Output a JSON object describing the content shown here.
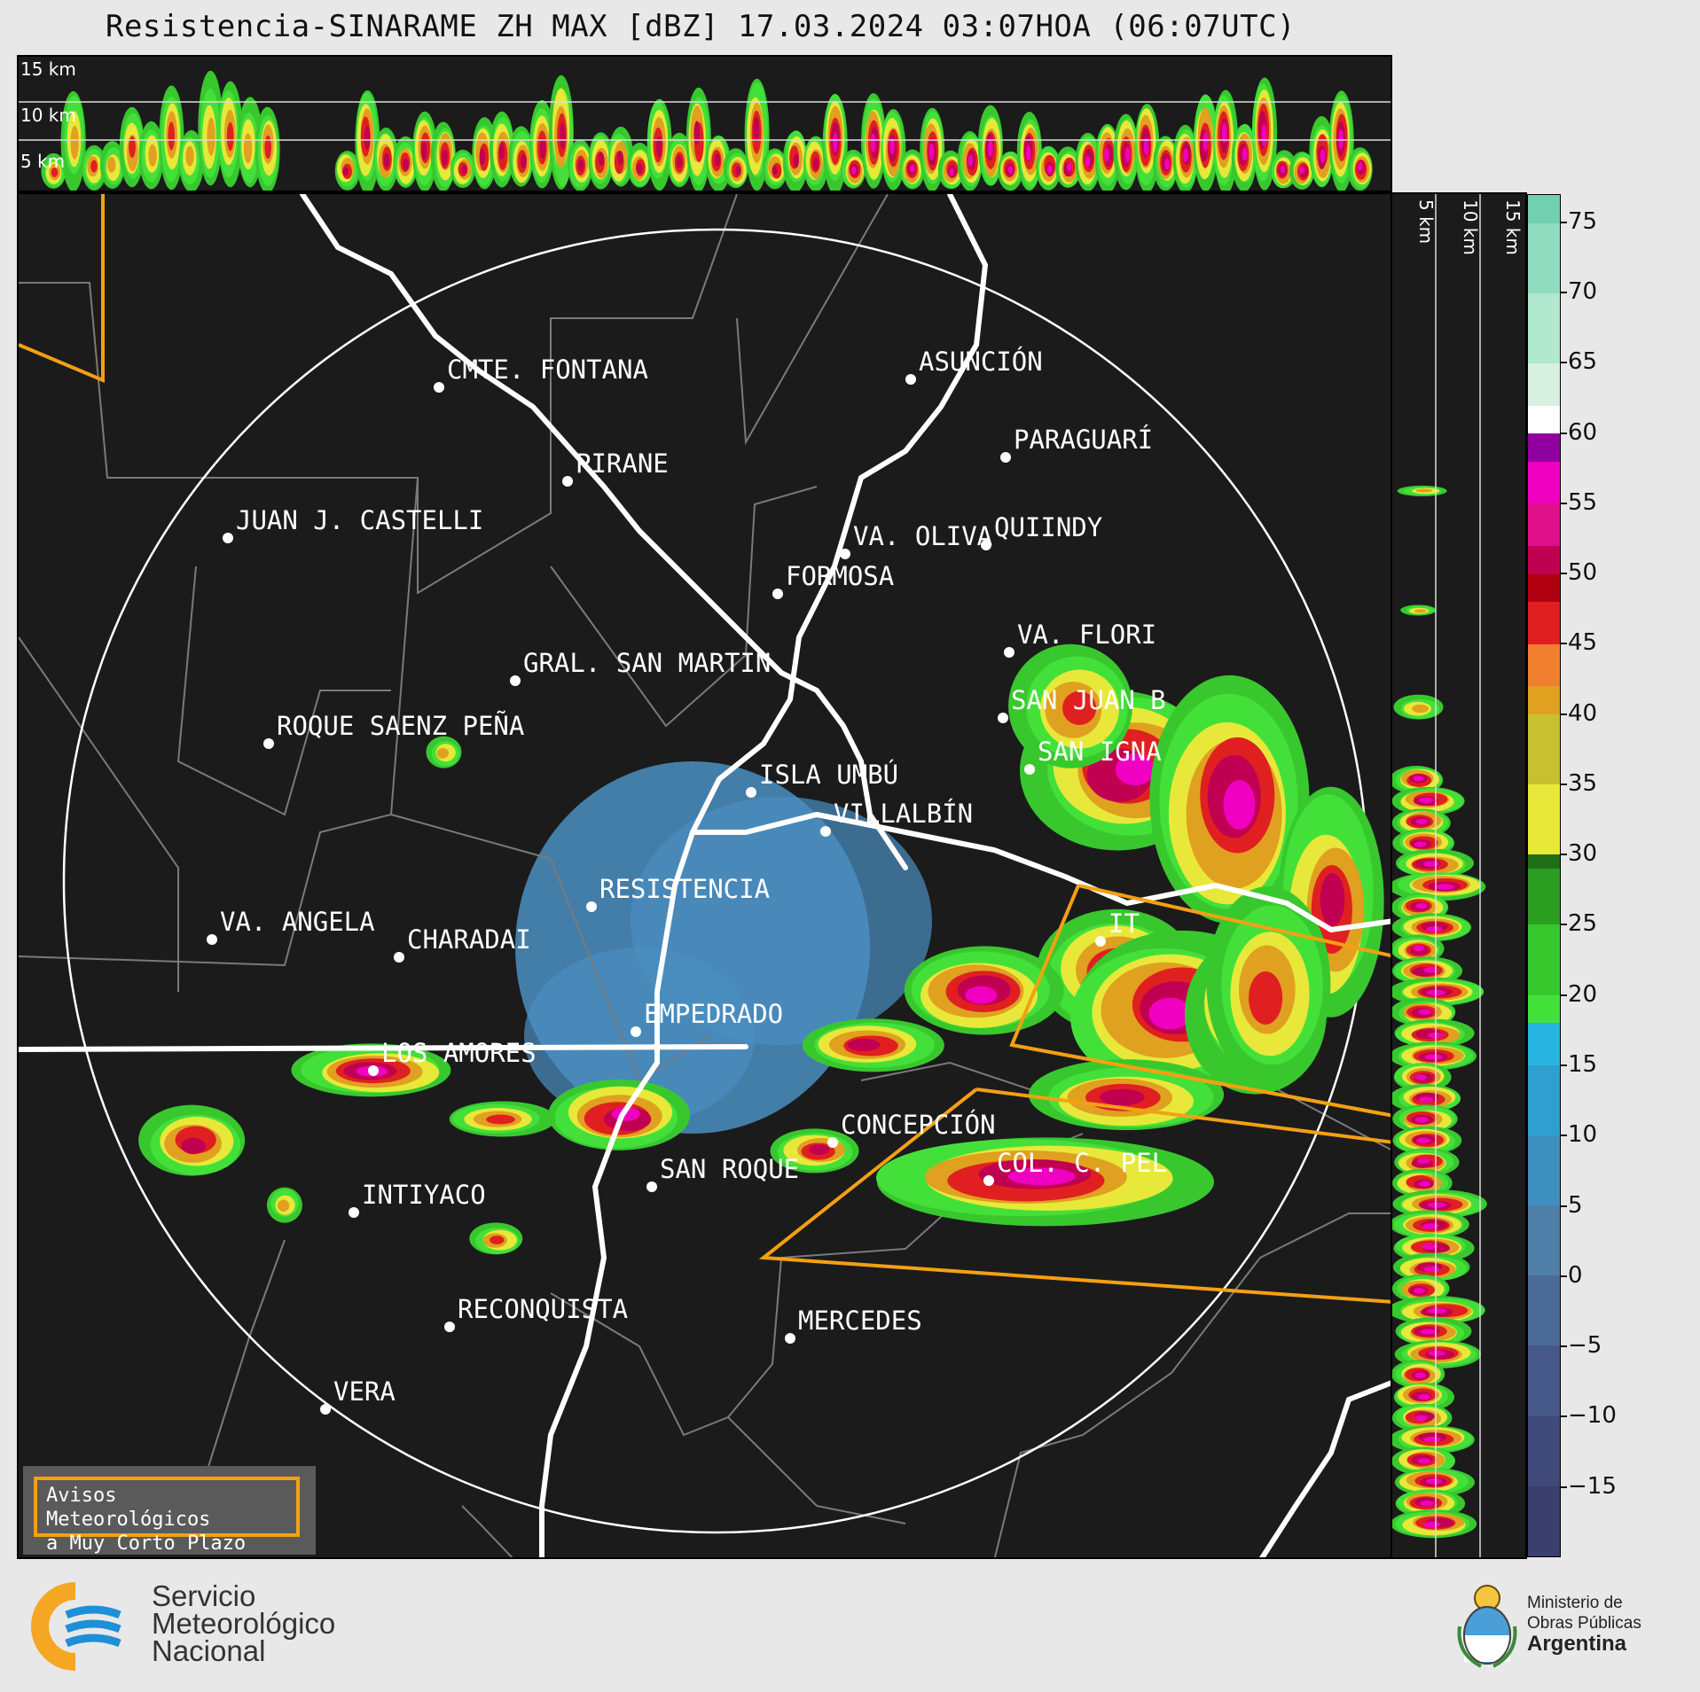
{
  "title": "Resistencia-SINARAME ZH MAX [dBZ] 17.03.2024 03:07HOA (06:07UTC)",
  "top_strip": {
    "height_labels": [
      "15 km",
      "10 km",
      "5 km"
    ]
  },
  "side_strip": {
    "height_labels": [
      "5 km",
      "10 km",
      "15 km"
    ]
  },
  "colorbar": {
    "unit": "dBZ",
    "ticks": [
      "75",
      "70",
      "65",
      "60",
      "55",
      "50",
      "45",
      "40",
      "35",
      "30",
      "25",
      "20",
      "15",
      "10",
      "5",
      "0",
      "−5",
      "−10",
      "−15"
    ],
    "tick_values": [
      75,
      70,
      65,
      60,
      55,
      50,
      45,
      40,
      35,
      30,
      25,
      20,
      15,
      10,
      5,
      0,
      -5,
      -10,
      -15
    ],
    "range": [
      -20,
      77
    ],
    "colors": {
      "-20": "#3a3f6b",
      "-15": "#3f4a7a",
      "-10": "#455887",
      "-5": "#4b6a97",
      "0": "#4f7fa8",
      "5": "#3d8fbf",
      "10": "#2f9fd0",
      "15": "#28b4e0",
      "18": "#44e03a",
      "20": "#38c82e",
      "25": "#2c9e22",
      "29": "#206e18",
      "30": "#e8e83a",
      "35": "#c8c030",
      "40": "#e0a020",
      "42": "#f08030",
      "45": "#e02020",
      "48": "#b00010",
      "50": "#c00050",
      "52": "#e0108a",
      "55": "#f000c0",
      "58": "#9000a0",
      "60": "#ffffff",
      "62": "#d8f0e0",
      "65": "#b0e8d0",
      "70": "#90dcc0",
      "75": "#70d0b0"
    }
  },
  "cities": [
    {
      "name": "CMTE. FONTANA"
    },
    {
      "name": "ASUNCIÓN"
    },
    {
      "name": "PARAGUARÍ"
    },
    {
      "name": "PIRANE"
    },
    {
      "name": "JUAN J. CASTELLI"
    },
    {
      "name": "VA. OLIVA"
    },
    {
      "name": "QUIINDY"
    },
    {
      "name": "FORMOSA"
    },
    {
      "name": "VA. FLORI"
    },
    {
      "name": "GRAL. SAN MARTIN"
    },
    {
      "name": "SAN JUAN B"
    },
    {
      "name": "ROQUE SAENZ PEÑA"
    },
    {
      "name": "SAN IGNA"
    },
    {
      "name": "ISLA UMBÚ"
    },
    {
      "name": "VILLALBÍN"
    },
    {
      "name": "RESISTENCIA"
    },
    {
      "name": "IT"
    },
    {
      "name": "VA. ANGELA"
    },
    {
      "name": "CHARADAI"
    },
    {
      "name": "EMPEDRADO"
    },
    {
      "name": "LOS AMORES"
    },
    {
      "name": "CONCEPCIÓN"
    },
    {
      "name": "COL. C. PEL"
    },
    {
      "name": "SAN ROQUE"
    },
    {
      "name": "INTIYACO"
    },
    {
      "name": "RECONQUISTA"
    },
    {
      "name": "MERCEDES"
    },
    {
      "name": "VERA"
    }
  ],
  "legend": {
    "line1": "Avisos Meteorológicos",
    "line2": "a Muy Corto Plazo"
  },
  "logos": {
    "smn": {
      "line1": "Servicio",
      "line2": "Meteorológico",
      "line3": "Nacional"
    },
    "ministry": {
      "line1": "Ministerio de",
      "line2": "Obras Públicas",
      "line3": "Argentina"
    }
  }
}
